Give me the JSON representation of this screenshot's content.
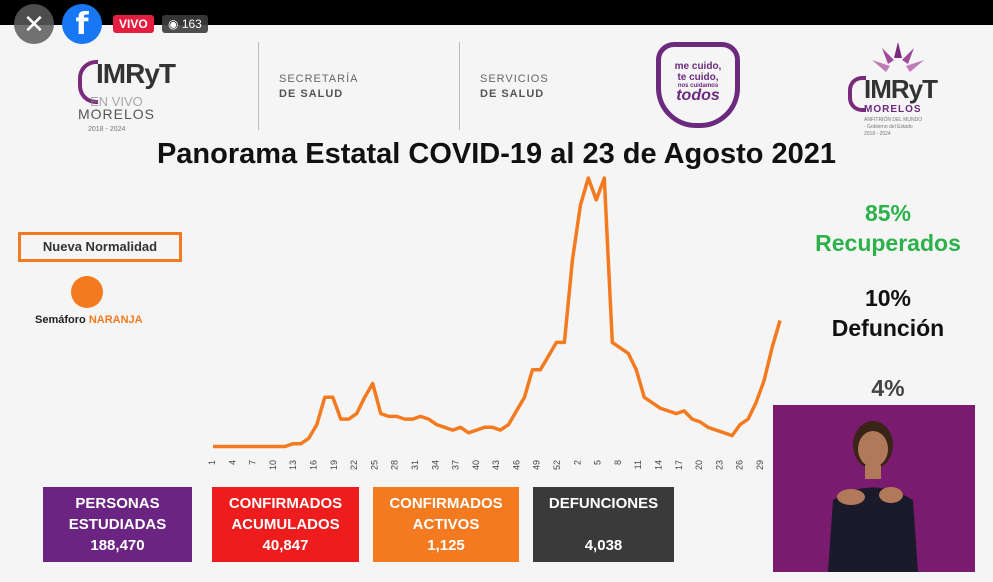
{
  "live": {
    "close_icon": "✕",
    "fb_icon": "f",
    "badge": "VIVO",
    "viewers": "163"
  },
  "header": {
    "logo_left": {
      "text": "IMRyT",
      "sub": "MORELOS",
      "years": "2018 - 2024",
      "overlay": "EN VIVO"
    },
    "dept1": {
      "line1": "SECRETARÍA",
      "line2": "DE SALUD"
    },
    "dept2": {
      "line1": "SERVICIOS",
      "line2": "DE SALUD"
    },
    "badge": {
      "l1": "me cuido,",
      "l2": "te cuido,",
      "l3": "nos cuidamos",
      "l4": "todos"
    },
    "logo_right": {
      "text": "IMRyT",
      "sub": "MORELOS",
      "tiny": "ANFITRIÓN DEL MUNDO · Gobierno del Estado 2018 - 2024"
    }
  },
  "title": "Panorama Estatal COVID-19 al 23 de Agosto 2021",
  "semaforo": {
    "normalidad": "Nueva Normalidad",
    "label": "Semáforo",
    "color_word": "NARANJA",
    "color": "#f47a20"
  },
  "stats": {
    "recuperados_pct": "85%",
    "recuperados_label": "Recuperados",
    "defuncion_pct": "10%",
    "defuncion_label": "Defunción",
    "activos_pct": "4%"
  },
  "chart_data": {
    "type": "line",
    "title": "",
    "xlabel": "",
    "ylabel": "",
    "x_ticks": [
      "1",
      "4",
      "7",
      "10",
      "13",
      "16",
      "19",
      "22",
      "25",
      "28",
      "31",
      "34",
      "37",
      "40",
      "43",
      "46",
      "49",
      "52",
      "2",
      "5",
      "8",
      "11",
      "14",
      "17",
      "20",
      "23",
      "26",
      "29"
    ],
    "series": [
      {
        "color": "#f47a20",
        "values": [
          2,
          2,
          2,
          2,
          2,
          2,
          2,
          2,
          2,
          2,
          3,
          3,
          5,
          10,
          20,
          20,
          12,
          12,
          14,
          20,
          25,
          14,
          13,
          13,
          12,
          12,
          13,
          12,
          10,
          9,
          8,
          9,
          7,
          8,
          9,
          9,
          8,
          10,
          15,
          20,
          30,
          30,
          35,
          40,
          40,
          70,
          90,
          100,
          92,
          100,
          40,
          38,
          36,
          30,
          20,
          18,
          16,
          15,
          14,
          15,
          12,
          11,
          9,
          8,
          7,
          6,
          10,
          12,
          18,
          26,
          38,
          48
        ]
      }
    ],
    "ylim": [
      0,
      100
    ],
    "grid": false,
    "legend": "none"
  },
  "boxes": {
    "estudiadas": {
      "l1": "PERSONAS",
      "l2": "ESTUDIADAS",
      "value": "188,470",
      "color": "#6b2482"
    },
    "acumulados": {
      "l1": "CONFIRMADOS",
      "l2": "ACUMULADOS",
      "value": "40,847",
      "color": "#ee1c1c"
    },
    "activos": {
      "l1": "CONFIRMADOS",
      "l2": "ACTIVOS",
      "value": "1,125",
      "color": "#f47a20"
    },
    "defunciones": {
      "l1": "DEFUNCIONES",
      "l2": "",
      "value": "4,038",
      "color": "#3a3a3a"
    }
  }
}
